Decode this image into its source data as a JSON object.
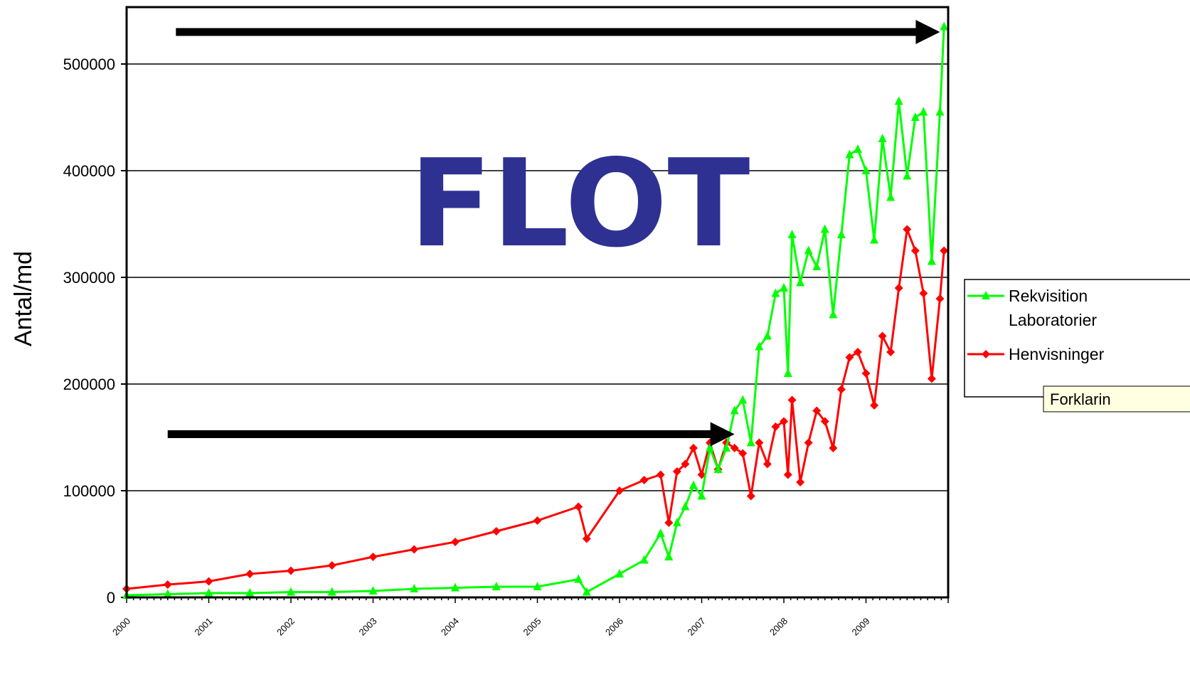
{
  "chart_data": {
    "type": "line",
    "title": "",
    "xlabel": "",
    "ylabel": "Antal/md",
    "ylim": [
      0,
      550000
    ],
    "yticks": [
      0,
      100000,
      200000,
      300000,
      400000,
      500000
    ],
    "ytick_labels": [
      "0",
      "100000",
      "200000",
      "300000",
      "400000",
      "500000"
    ],
    "xlim": [
      2000,
      2010
    ],
    "x_tick_values": [
      2000,
      2001,
      2002,
      2003,
      2004,
      2005,
      2006,
      2007,
      2008,
      2009
    ],
    "x_tick_labels": [
      "2000",
      "2001",
      "2002",
      "2003",
      "2004",
      "2005",
      "2006",
      "2007",
      "2008",
      "2009"
    ],
    "grid": true,
    "legend_position": "right",
    "overlay_text": "FLOT",
    "tooltip_text": "Forklarin",
    "series": [
      {
        "name": "Rekvisition Laboratorier",
        "color": "#00FF00",
        "marker": "triangle",
        "x": [
          2000,
          2000.5,
          2001,
          2001.5,
          2002,
          2002.5,
          2003,
          2003.5,
          2004,
          2004.5,
          2005,
          2005.5,
          2005.6,
          2006,
          2006.3,
          2006.5,
          2006.6,
          2006.7,
          2006.8,
          2006.9,
          2007,
          2007.1,
          2007.2,
          2007.3,
          2007.4,
          2007.5,
          2007.6,
          2007.7,
          2007.8,
          2007.9,
          2008,
          2008.05,
          2008.1,
          2008.2,
          2008.3,
          2008.4,
          2008.5,
          2008.6,
          2008.7,
          2008.8,
          2008.9,
          2009,
          2009.1,
          2009.2,
          2009.3,
          2009.4,
          2009.5,
          2009.6,
          2009.7,
          2009.8,
          2009.9,
          2009.95
        ],
        "y": [
          2000,
          3000,
          4000,
          4000,
          5000,
          5000,
          6000,
          8000,
          9000,
          10000,
          10000,
          17000,
          5000,
          22000,
          35000,
          60000,
          38000,
          70000,
          85000,
          105000,
          95000,
          140000,
          120000,
          140000,
          175000,
          185000,
          145000,
          235000,
          245000,
          285000,
          290000,
          210000,
          340000,
          295000,
          325000,
          310000,
          345000,
          265000,
          340000,
          415000,
          420000,
          400000,
          335000,
          430000,
          375000,
          465000,
          395000,
          450000,
          455000,
          315000,
          455000,
          535000
        ]
      },
      {
        "name": "Henvisninger",
        "color": "#FF0000",
        "marker": "diamond",
        "x": [
          2000,
          2000.5,
          2001,
          2001.5,
          2002,
          2002.5,
          2003,
          2003.5,
          2004,
          2004.5,
          2005,
          2005.5,
          2005.6,
          2006,
          2006.3,
          2006.5,
          2006.6,
          2006.7,
          2006.8,
          2006.9,
          2007,
          2007.1,
          2007.2,
          2007.3,
          2007.4,
          2007.5,
          2007.6,
          2007.7,
          2007.8,
          2007.9,
          2008,
          2008.05,
          2008.1,
          2008.2,
          2008.3,
          2008.4,
          2008.5,
          2008.6,
          2008.7,
          2008.8,
          2008.9,
          2009,
          2009.1,
          2009.2,
          2009.3,
          2009.4,
          2009.5,
          2009.6,
          2009.7,
          2009.8,
          2009.9,
          2009.95
        ],
        "y": [
          8000,
          12000,
          15000,
          22000,
          25000,
          30000,
          38000,
          45000,
          52000,
          62000,
          72000,
          85000,
          55000,
          100000,
          110000,
          115000,
          70000,
          118000,
          125000,
          140000,
          115000,
          145000,
          120000,
          145000,
          140000,
          135000,
          95000,
          145000,
          125000,
          160000,
          165000,
          115000,
          185000,
          108000,
          145000,
          175000,
          165000,
          140000,
          195000,
          225000,
          230000,
          210000,
          180000,
          245000,
          230000,
          290000,
          345000,
          325000,
          285000,
          205000,
          280000,
          325000
        ]
      }
    ],
    "annotations": [
      {
        "type": "arrow",
        "from": [
          2000.6,
          530000
        ],
        "to": [
          2009.9,
          530000
        ]
      },
      {
        "type": "arrow",
        "from": [
          2000.5,
          153000
        ],
        "to": [
          2007.4,
          153000
        ]
      }
    ]
  }
}
